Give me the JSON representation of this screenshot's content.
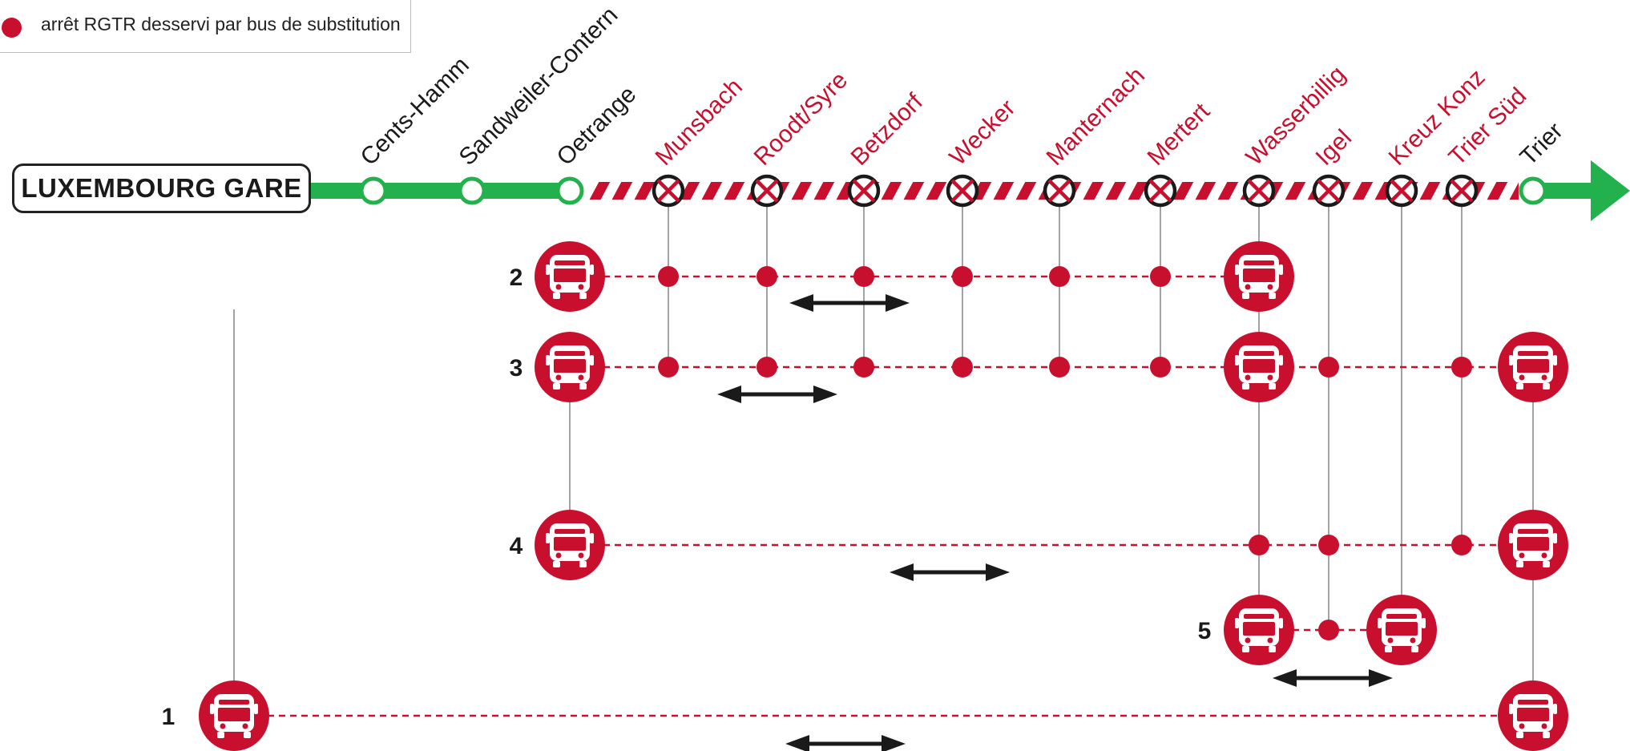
{
  "legend": {
    "text": "arrêt RGTR desservi par bus de substitution"
  },
  "terminus": {
    "label": "LUXEMBOURG GARE"
  },
  "colors": {
    "green": "#22b14c",
    "red": "#c8102e",
    "dark": "#1a1a1a",
    "grey": "#999999"
  },
  "stations": [
    {
      "id": "cents-hamm",
      "name": "Cents-Hamm",
      "status": "open"
    },
    {
      "id": "sandweiler-contern",
      "name": "Sandweiler-Contern",
      "status": "open"
    },
    {
      "id": "oetrange",
      "name": "Oetrange",
      "status": "open"
    },
    {
      "id": "munsbach",
      "name": "Munsbach",
      "status": "closed"
    },
    {
      "id": "roodt-syre",
      "name": "Roodt/Syre",
      "status": "closed"
    },
    {
      "id": "betzdorf",
      "name": "Betzdorf",
      "status": "closed"
    },
    {
      "id": "wecker",
      "name": "Wecker",
      "status": "closed"
    },
    {
      "id": "manternach",
      "name": "Manternach",
      "status": "closed"
    },
    {
      "id": "mertert",
      "name": "Mertert",
      "status": "closed"
    },
    {
      "id": "wasserbillig",
      "name": "Wasserbillig",
      "status": "closed"
    },
    {
      "id": "igel",
      "name": "Igel",
      "status": "closed"
    },
    {
      "id": "kreuz-konz",
      "name": "Kreuz Konz",
      "status": "closed"
    },
    {
      "id": "trier-sud",
      "name": "Trier Süd",
      "status": "closed"
    },
    {
      "id": "trier",
      "name": "Trier",
      "status": "open"
    }
  ],
  "bus_lines": [
    {
      "label": "2",
      "from": "oetrange",
      "to": "wasserbillig",
      "stops": [
        "munsbach",
        "roodt-syre",
        "betzdorf",
        "wecker",
        "manternach",
        "mertert"
      ]
    },
    {
      "label": "3",
      "from": "oetrange",
      "to": "trier",
      "stops": [
        "munsbach",
        "roodt-syre",
        "betzdorf",
        "wecker",
        "manternach",
        "mertert",
        "igel",
        "trier-sud"
      ],
      "bus_stations": [
        "wasserbillig"
      ]
    },
    {
      "label": "4",
      "from": "oetrange",
      "to": "trier",
      "stops": [
        "wasserbillig",
        "igel",
        "trier-sud"
      ]
    },
    {
      "label": "5",
      "from": "wasserbillig",
      "to": "kreuz-konz",
      "stops": [
        "igel"
      ]
    },
    {
      "label": "1",
      "from": "luxembourg-gare",
      "to": "trier",
      "stops": []
    }
  ]
}
